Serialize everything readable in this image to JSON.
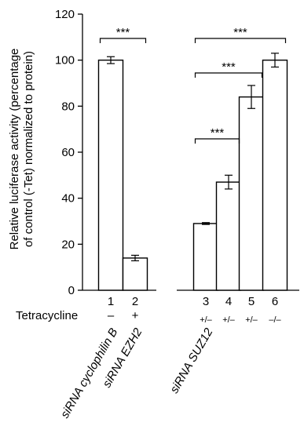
{
  "chart_data": {
    "type": "bar",
    "ylabel": "Relative luciferase activity (percentage of control (-Tet) normalized to protein)",
    "ylabel_lines": [
      "Relative luciferase activity (percentage",
      "of control (-Tet) normalized to protein)"
    ],
    "ylim": [
      0,
      120
    ],
    "yticks": [
      0,
      20,
      40,
      60,
      80,
      100,
      120
    ],
    "categories": [
      "1",
      "2",
      "3",
      "4",
      "5",
      "6"
    ],
    "values": [
      100,
      14,
      29,
      47,
      84,
      100
    ],
    "errors": [
      1.5,
      1.2,
      0.4,
      3,
      5,
      3
    ],
    "tetracycline_label": "Tetracycline",
    "tetracycline": [
      "–",
      "+",
      "+/–",
      "+/–",
      "+/–",
      "–/–"
    ],
    "sirna_labels": [
      "siRNA cyclophilin B",
      "siRNA EZH2",
      "siRNA SUZ12"
    ],
    "significance": [
      {
        "from": "1",
        "to": "2",
        "label": "***"
      },
      {
        "from": "3",
        "to": "6",
        "label": "***"
      },
      {
        "from": "3",
        "to": "5",
        "label": "***"
      },
      {
        "from": "3",
        "to": "4",
        "label": "***"
      }
    ],
    "grid": false,
    "legend": "none"
  }
}
